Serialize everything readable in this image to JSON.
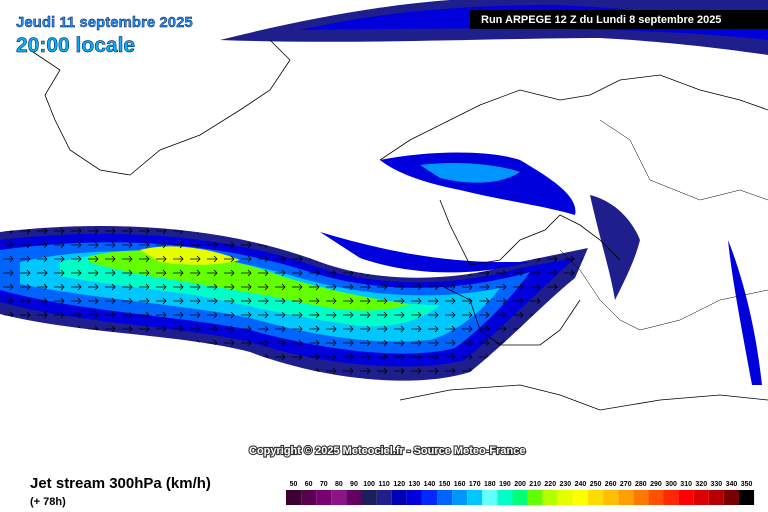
{
  "header": {
    "date": "Jeudi 11 septembre 2025",
    "time": "20:00 locale"
  },
  "run": "Run ARPEGE 12 Z du Lundi 8 septembre 2025",
  "copyright": "Copyright © 2025 Meteociel.fr - Source Meteo-France",
  "footer": {
    "title": "Jet stream 300hPa (km/h)",
    "lead": "(+ 78h)"
  },
  "legend": {
    "ticks": [
      50,
      60,
      70,
      80,
      90,
      100,
      110,
      120,
      130,
      140,
      150,
      160,
      170,
      180,
      190,
      200,
      210,
      220,
      230,
      240,
      250,
      260,
      270,
      280,
      290,
      300,
      310,
      320,
      330,
      340,
      350
    ],
    "colors": [
      "#3c0032",
      "#5a0050",
      "#780070",
      "#8c1487",
      "#640064",
      "#1e1e5a",
      "#1e1e8c",
      "#0000b4",
      "#0000dc",
      "#0028ff",
      "#0064ff",
      "#0096ff",
      "#00c8ff",
      "#64ffff",
      "#00ffc8",
      "#00ff78",
      "#64ff00",
      "#b4ff00",
      "#e6ff00",
      "#ffff00",
      "#ffdc00",
      "#ffbe00",
      "#ffa000",
      "#ff7800",
      "#ff5000",
      "#ff2800",
      "#ff0000",
      "#dc0000",
      "#b40000",
      "#780000",
      "#000000"
    ]
  }
}
